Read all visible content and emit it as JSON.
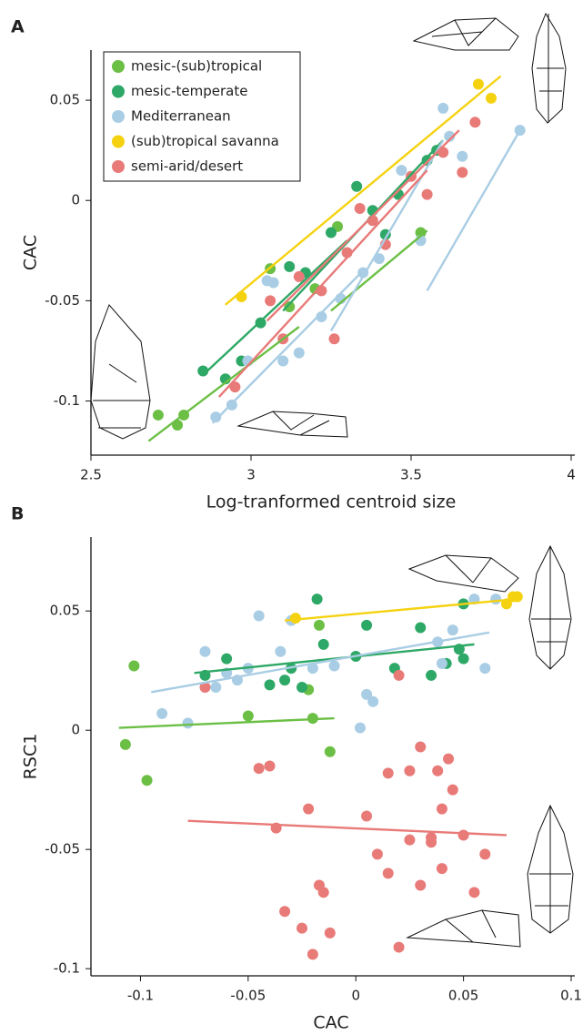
{
  "chart_data": [
    {
      "type": "scatter",
      "panel_label": "A",
      "x_label": "Log-tranformed centroid size",
      "y_label": "CAC",
      "xlim": [
        2.5,
        4.0
      ],
      "ylim": [
        -0.127,
        0.075
      ],
      "xticks": [
        2.5,
        3,
        3.5,
        4
      ],
      "yticks": [
        -0.1,
        -0.05,
        0,
        0.05
      ],
      "legend": "upper left",
      "series": [
        {
          "name": "mesic-(sub)tropical",
          "color": "#6cbf45",
          "x": [
            2.71,
            2.77,
            2.79,
            3.06,
            3.12,
            3.2,
            3.27,
            3.53
          ],
          "values": [
            -0.107,
            -0.112,
            -0.107,
            -0.034,
            -0.053,
            -0.044,
            -0.013,
            -0.016
          ],
          "fits": [
            {
              "x": [
                2.68,
                3.15
              ],
              "y": [
                -0.12,
                -0.063
              ]
            },
            {
              "x": [
                3.25,
                3.55
              ],
              "y": [
                -0.055,
                -0.015
              ]
            }
          ]
        },
        {
          "name": "mesic-temperate",
          "color": "#2ea866",
          "x": [
            2.85,
            2.92,
            2.97,
            3.03,
            3.12,
            3.17,
            3.25,
            3.33,
            3.38,
            3.42,
            3.46,
            3.55,
            3.58
          ],
          "values": [
            -0.085,
            -0.089,
            -0.08,
            -0.061,
            -0.033,
            -0.036,
            -0.016,
            0.007,
            -0.005,
            -0.017,
            0.003,
            0.02,
            0.025
          ],
          "fits": [
            {
              "x": [
                2.85,
                3.3
              ],
              "y": [
                -0.087,
                -0.02
              ]
            },
            {
              "x": [
                3.1,
                3.6
              ],
              "y": [
                -0.055,
                0.03
              ]
            }
          ]
        },
        {
          "name": "Mediterranean",
          "color": "#a9cde4",
          "x": [
            2.89,
            2.94,
            2.99,
            3.05,
            3.07,
            3.1,
            3.15,
            3.22,
            3.28,
            3.35,
            3.4,
            3.47,
            3.53,
            3.6,
            3.62,
            3.66,
            3.84
          ],
          "values": [
            -0.108,
            -0.102,
            -0.08,
            -0.04,
            -0.041,
            -0.08,
            -0.076,
            -0.058,
            -0.049,
            -0.036,
            -0.029,
            0.015,
            -0.02,
            0.046,
            0.032,
            0.022,
            0.035
          ],
          "fits": [
            {
              "x": [
                2.88,
                3.35
              ],
              "y": [
                -0.111,
                -0.035
              ]
            },
            {
              "x": [
                3.25,
                3.6
              ],
              "y": [
                -0.065,
                0.03
              ]
            },
            {
              "x": [
                3.55,
                3.84
              ],
              "y": [
                -0.045,
                0.035
              ]
            }
          ]
        },
        {
          "name": "(sub)tropical savanna",
          "color": "#f5d210",
          "x": [
            2.97,
            3.71,
            3.75
          ],
          "values": [
            -0.048,
            0.058,
            0.051
          ],
          "fits": [
            {
              "x": [
                2.92,
                3.78
              ],
              "y": [
                -0.052,
                0.062
              ]
            }
          ]
        },
        {
          "name": "semi-arid/desert",
          "color": "#e87a78",
          "x": [
            2.95,
            3.06,
            3.1,
            3.15,
            3.22,
            3.26,
            3.3,
            3.34,
            3.38,
            3.42,
            3.5,
            3.55,
            3.6,
            3.66,
            3.7
          ],
          "values": [
            -0.093,
            -0.05,
            -0.069,
            -0.038,
            -0.045,
            -0.069,
            -0.026,
            -0.004,
            -0.01,
            -0.022,
            0.012,
            0.003,
            0.024,
            0.014,
            0.039
          ],
          "fits": [
            {
              "x": [
                2.9,
                3.55
              ],
              "y": [
                -0.098,
                0.015
              ]
            },
            {
              "x": [
                3.05,
                3.65
              ],
              "y": [
                -0.06,
                0.035
              ]
            }
          ]
        }
      ]
    },
    {
      "type": "scatter",
      "panel_label": "B",
      "x_label": "CAC",
      "y_label": "RSC1",
      "xlim": [
        -0.123,
        0.1
      ],
      "ylim": [
        -0.103,
        0.081
      ],
      "xticks": [
        -0.1,
        -0.05,
        0,
        0.05,
        0.1
      ],
      "yticks": [
        -0.1,
        -0.05,
        0,
        0.05
      ],
      "series": [
        {
          "color": "#6cbf45",
          "x": [
            -0.107,
            -0.103,
            -0.097,
            -0.05,
            -0.022,
            -0.02,
            -0.017,
            -0.012
          ],
          "values": [
            -0.006,
            0.027,
            -0.021,
            0.006,
            0.017,
            0.005,
            0.044,
            -0.009
          ],
          "fits": [
            {
              "x": [
                -0.11,
                -0.01
              ],
              "y": [
                0.001,
                0.005
              ]
            }
          ]
        },
        {
          "color": "#2ea866",
          "x": [
            -0.07,
            -0.06,
            -0.04,
            -0.033,
            -0.03,
            -0.025,
            -0.018,
            -0.015,
            0,
            0.005,
            0.018,
            0.03,
            0.035,
            0.042,
            0.048,
            0.05,
            0.05
          ],
          "values": [
            0.023,
            0.03,
            0.019,
            0.021,
            0.026,
            0.018,
            0.055,
            0.036,
            0.031,
            0.044,
            0.026,
            0.043,
            0.023,
            0.028,
            0.034,
            0.03,
            0.053
          ],
          "fits": [
            {
              "x": [
                -0.075,
                0.055
              ],
              "y": [
                0.024,
                0.036
              ]
            }
          ]
        },
        {
          "color": "#a9cde4",
          "x": [
            -0.09,
            -0.078,
            -0.07,
            -0.065,
            -0.06,
            -0.055,
            -0.05,
            -0.045,
            -0.035,
            -0.03,
            -0.02,
            -0.01,
            0.002,
            0.005,
            0.008,
            0.038,
            0.04,
            0.045,
            0.055,
            0.06,
            0.065
          ],
          "values": [
            0.007,
            0.003,
            0.033,
            0.018,
            0.024,
            0.021,
            0.026,
            0.048,
            0.033,
            0.046,
            0.026,
            0.027,
            0.001,
            0.015,
            0.012,
            0.037,
            0.028,
            0.042,
            0.055,
            0.026,
            0.055
          ],
          "fits": [
            {
              "x": [
                -0.095,
                0.062
              ],
              "y": [
                0.016,
                0.041
              ]
            }
          ]
        },
        {
          "color": "#f5d210",
          "x": [
            -0.028,
            0.07,
            0.073,
            0.075
          ],
          "values": [
            0.047,
            0.053,
            0.056,
            0.056
          ],
          "fits": [
            {
              "x": [
                -0.033,
                0.075
              ],
              "y": [
                0.046,
                0.055
              ]
            }
          ]
        },
        {
          "color": "#e87a78",
          "x": [
            -0.07,
            -0.045,
            -0.04,
            -0.037,
            -0.033,
            -0.025,
            -0.022,
            -0.02,
            -0.017,
            -0.015,
            -0.012,
            0.005,
            0.01,
            0.015,
            0.015,
            0.02,
            0.02,
            0.025,
            0.025,
            0.03,
            0.03,
            0.035,
            0.035,
            0.038,
            0.04,
            0.04,
            0.043,
            0.045,
            0.05,
            0.055,
            0.06
          ],
          "values": [
            0.018,
            -0.016,
            -0.015,
            -0.041,
            -0.076,
            -0.083,
            -0.033,
            -0.094,
            -0.065,
            -0.068,
            -0.085,
            -0.036,
            -0.052,
            -0.018,
            -0.06,
            0.023,
            -0.091,
            -0.046,
            -0.017,
            -0.007,
            -0.065,
            -0.045,
            -0.047,
            -0.017,
            -0.058,
            -0.033,
            -0.012,
            -0.025,
            -0.044,
            -0.068,
            -0.052
          ],
          "fits": [
            {
              "x": [
                -0.078,
                0.07
              ],
              "y": [
                -0.038,
                -0.044
              ]
            }
          ]
        }
      ]
    }
  ]
}
